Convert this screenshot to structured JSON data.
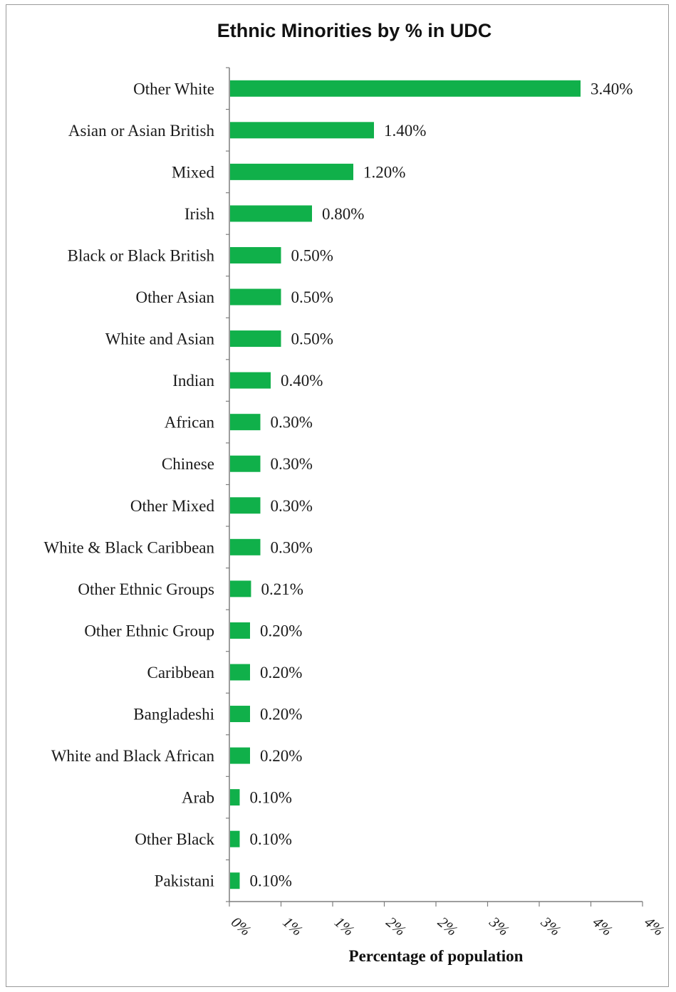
{
  "chart_data": {
    "type": "bar",
    "orientation": "horizontal",
    "title": "Ethnic Minorities by %  in UDC",
    "xlabel": "Percentage of population",
    "ylabel": "",
    "categories": [
      "Other White",
      "Asian or Asian British",
      "Mixed",
      "Irish",
      "Black or Black British",
      "Other Asian",
      "White and Asian",
      "Indian",
      "African",
      "Chinese",
      "Other Mixed",
      "White & Black Caribbean",
      "Other Ethnic Groups",
      "Other Ethnic Group",
      "Caribbean",
      "Bangladeshi",
      "White and Black African",
      "Arab",
      "Other Black",
      "Pakistani"
    ],
    "values": [
      3.4,
      1.4,
      1.2,
      0.8,
      0.5,
      0.5,
      0.5,
      0.4,
      0.3,
      0.3,
      0.3,
      0.3,
      0.21,
      0.2,
      0.2,
      0.2,
      0.2,
      0.1,
      0.1,
      0.1
    ],
    "value_labels": [
      "3.40%",
      "1.40%",
      "1.20%",
      "0.80%",
      "0.50%",
      "0.50%",
      "0.50%",
      "0.40%",
      "0.30%",
      "0.30%",
      "0.30%",
      "0.30%",
      "0.21%",
      "0.20%",
      "0.20%",
      "0.20%",
      "0.20%",
      "0.10%",
      "0.10%",
      "0.10%"
    ],
    "xlim": [
      0,
      4
    ],
    "x_ticks": [
      0,
      0.5,
      1,
      1.5,
      2,
      2.5,
      3,
      3.5,
      4
    ],
    "x_tick_labels": [
      "0%",
      "1%",
      "1%",
      "2%",
      "2%",
      "3%",
      "3%",
      "4%",
      "4%"
    ],
    "bar_color": "#10b04a",
    "grid": false,
    "legend": "none"
  }
}
